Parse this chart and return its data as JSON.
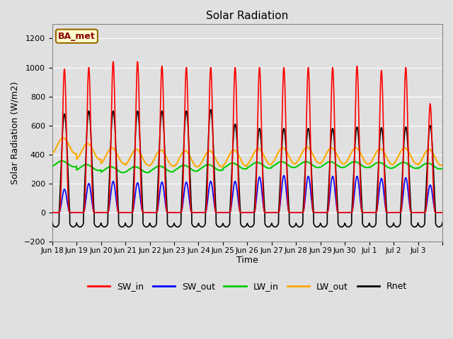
{
  "title": "Solar Radiation",
  "xlabel": "Time",
  "ylabel": "Solar Radiation (W/m2)",
  "ylim": [
    -200,
    1300
  ],
  "yticks": [
    -200,
    0,
    200,
    400,
    600,
    800,
    1000,
    1200
  ],
  "num_days": 16,
  "fig_width": 6.4,
  "fig_height": 4.8,
  "dpi": 100,
  "bg_color": "#e0e0e0",
  "plot_bg_color": "#e0e0e0",
  "colors": {
    "SW_in": "#ff0000",
    "SW_out": "#0000ff",
    "LW_in": "#00cc00",
    "LW_out": "#ffaa00",
    "Rnet": "#000000"
  },
  "annotation_text": "BA_met",
  "annotation_bg": "#ffffcc",
  "annotation_border": "#996600",
  "xtick_labels": [
    "Jun 18",
    "Jun 19",
    "Jun 20",
    "Jun 21",
    "Jun 22",
    "Jun 23",
    "Jun 24",
    "Jun 25",
    "Jun 26",
    "Jun 27",
    "Jun 28",
    "Jun 29",
    "Jun 30",
    "Jul 1",
    "Jul 2",
    "Jul 3"
  ]
}
